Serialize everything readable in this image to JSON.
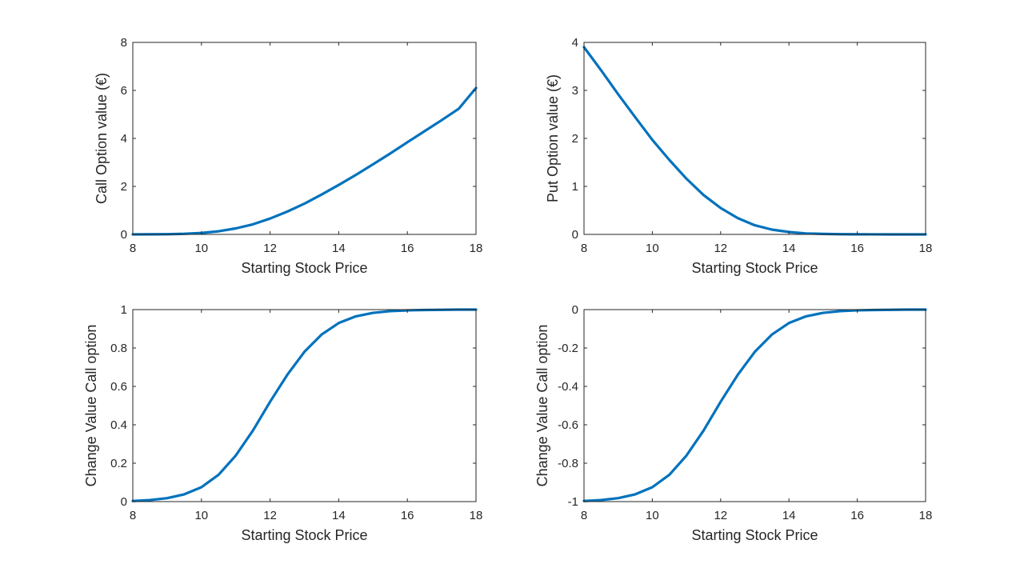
{
  "colors": {
    "line": "#0072BD",
    "axes": "#262626",
    "background": "#ffffff"
  },
  "chart_data": [
    {
      "type": "line",
      "title": "",
      "xlabel": "Starting Stock Price",
      "ylabel": "Call Option value (€)",
      "xlim": [
        8,
        18
      ],
      "ylim": [
        0,
        8
      ],
      "xticks": [
        "8",
        "10",
        "12",
        "14",
        "16",
        "18"
      ],
      "yticks": [
        "0",
        "2",
        "4",
        "6",
        "8"
      ],
      "grid": false,
      "x": [
        8,
        8.5,
        9,
        9.5,
        10,
        10.5,
        11,
        11.5,
        12,
        12.5,
        13,
        13.5,
        14,
        14.5,
        15,
        15.5,
        16,
        16.5,
        17,
        17.5,
        18
      ],
      "series": [
        {
          "values": [
            0.001,
            0.003,
            0.009,
            0.025,
            0.06,
            0.13,
            0.25,
            0.42,
            0.66,
            0.95,
            1.28,
            1.66,
            2.06,
            2.48,
            2.92,
            3.37,
            3.84,
            4.3,
            4.76,
            5.24,
            6.1
          ]
        }
      ]
    },
    {
      "type": "line",
      "title": "",
      "xlabel": "Starting Stock Price",
      "ylabel": "Put Option value (€)",
      "xlim": [
        8,
        18
      ],
      "ylim": [
        0,
        4
      ],
      "xticks": [
        "8",
        "10",
        "12",
        "14",
        "16",
        "18"
      ],
      "yticks": [
        "0",
        "1",
        "2",
        "3",
        "4"
      ],
      "grid": false,
      "x": [
        8,
        8.5,
        9,
        9.5,
        10,
        10.5,
        11,
        11.5,
        12,
        12.5,
        13,
        13.5,
        14,
        14.5,
        15,
        15.5,
        16,
        16.5,
        17,
        17.5,
        18
      ],
      "series": [
        {
          "values": [
            3.9,
            3.42,
            2.92,
            2.44,
            1.97,
            1.55,
            1.16,
            0.82,
            0.55,
            0.34,
            0.19,
            0.1,
            0.05,
            0.02,
            0.01,
            0.004,
            0.002,
            0.001,
            0.0,
            0.0,
            0.0
          ]
        }
      ]
    },
    {
      "type": "line",
      "title": "",
      "xlabel": "Starting Stock Price",
      "ylabel": "Change Value Call option",
      "xlim": [
        8,
        18
      ],
      "ylim": [
        0,
        1
      ],
      "xticks": [
        "8",
        "10",
        "12",
        "14",
        "16",
        "18"
      ],
      "yticks": [
        "0",
        "0.2",
        "0.4",
        "0.6",
        "0.8",
        "1"
      ],
      "grid": false,
      "x": [
        8,
        8.5,
        9,
        9.5,
        10,
        10.5,
        11,
        11.5,
        12,
        12.5,
        13,
        13.5,
        14,
        14.5,
        15,
        15.5,
        16,
        16.5,
        17,
        17.5,
        18
      ],
      "series": [
        {
          "values": [
            0.003,
            0.008,
            0.018,
            0.038,
            0.075,
            0.14,
            0.24,
            0.37,
            0.52,
            0.66,
            0.78,
            0.87,
            0.93,
            0.965,
            0.983,
            0.992,
            0.996,
            0.998,
            0.999,
            1.0,
            1.0
          ]
        }
      ]
    },
    {
      "type": "line",
      "title": "",
      "xlabel": "Starting Stock Price",
      "ylabel": "Change Value Call option",
      "xlim": [
        8,
        18
      ],
      "ylim": [
        -1,
        0
      ],
      "xticks": [
        "8",
        "10",
        "12",
        "14",
        "16",
        "18"
      ],
      "yticks": [
        "-1",
        "-0.8",
        "-0.6",
        "-0.4",
        "-0.2",
        "0"
      ],
      "grid": false,
      "x": [
        8,
        8.5,
        9,
        9.5,
        10,
        10.5,
        11,
        11.5,
        12,
        12.5,
        13,
        13.5,
        14,
        14.5,
        15,
        15.5,
        16,
        16.5,
        17,
        17.5,
        18
      ],
      "series": [
        {
          "values": [
            -0.997,
            -0.992,
            -0.982,
            -0.962,
            -0.925,
            -0.86,
            -0.76,
            -0.63,
            -0.48,
            -0.34,
            -0.22,
            -0.13,
            -0.07,
            -0.035,
            -0.017,
            -0.008,
            -0.004,
            -0.002,
            -0.001,
            0.0,
            0.0
          ]
        }
      ]
    }
  ]
}
